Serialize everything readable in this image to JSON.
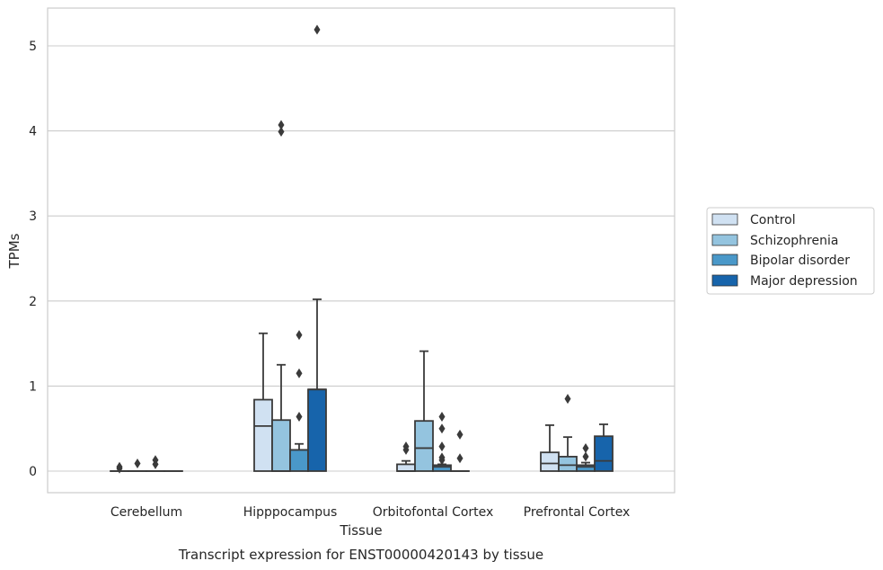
{
  "chart_data": {
    "type": "box",
    "title": "",
    "caption": "Transcript expression for ENST00000420143 by tissue",
    "xlabel": "Tissue",
    "ylabel": "TPMs",
    "ylim": [
      -0.25,
      5.45
    ],
    "yticks": [
      0,
      1,
      2,
      3,
      4,
      5
    ],
    "grid": "horizontal",
    "legend_position": "right",
    "categories": [
      "Cerebellum",
      "Hipppocampus",
      "Orbitofontal Cortex",
      "Prefrontal Cortex"
    ],
    "series": [
      {
        "name": "Control",
        "color": "#d0e1f2",
        "boxes": [
          {
            "whisker_low": 0,
            "q1": 0,
            "median": 0,
            "q3": 0,
            "whisker_high": 0,
            "outliers": [
              0.05,
              0.03
            ]
          },
          {
            "whisker_low": 0,
            "q1": 0,
            "median": 0.53,
            "q3": 0.84,
            "whisker_high": 1.62,
            "outliers": []
          },
          {
            "whisker_low": 0,
            "q1": 0,
            "median": 0,
            "q3": 0.08,
            "whisker_high": 0.12,
            "outliers": [
              0.25,
              0.29
            ]
          },
          {
            "whisker_low": 0,
            "q1": 0,
            "median": 0.09,
            "q3": 0.22,
            "whisker_high": 0.54,
            "outliers": []
          }
        ]
      },
      {
        "name": "Schizophrenia",
        "color": "#94c4df",
        "boxes": [
          {
            "whisker_low": 0,
            "q1": 0,
            "median": 0,
            "q3": 0,
            "whisker_high": 0,
            "outliers": [
              0.09
            ]
          },
          {
            "whisker_low": 0,
            "q1": 0,
            "median": 0,
            "q3": 0.6,
            "whisker_high": 1.25,
            "outliers": [
              4.07,
              3.99
            ]
          },
          {
            "whisker_low": 0,
            "q1": 0,
            "median": 0.27,
            "q3": 0.59,
            "whisker_high": 1.41,
            "outliers": []
          },
          {
            "whisker_low": 0,
            "q1": 0,
            "median": 0.07,
            "q3": 0.17,
            "whisker_high": 0.4,
            "outliers": [
              0.85
            ]
          }
        ]
      },
      {
        "name": "Bipolar disorder",
        "color": "#4a98c9",
        "boxes": [
          {
            "whisker_low": 0,
            "q1": 0,
            "median": 0,
            "q3": 0,
            "whisker_high": 0,
            "outliers": [
              0.13,
              0.08
            ]
          },
          {
            "whisker_low": 0,
            "q1": 0,
            "median": 0.25,
            "q3": 0.25,
            "whisker_high": 0.32,
            "outliers": [
              0.64,
              1.15,
              1.6
            ]
          },
          {
            "whisker_low": 0,
            "q1": 0,
            "median": 0.05,
            "q3": 0.07,
            "whisker_high": 0.08,
            "outliers": [
              0.29,
              0.5,
              0.64,
              0.13,
              0.16
            ]
          },
          {
            "whisker_low": 0,
            "q1": 0,
            "median": 0.05,
            "q3": 0.07,
            "whisker_high": 0.1,
            "outliers": [
              0.17,
              0.27
            ]
          }
        ]
      },
      {
        "name": "Major depression",
        "color": "#1764ab",
        "boxes": [
          {
            "whisker_low": 0,
            "q1": 0,
            "median": 0,
            "q3": 0,
            "whisker_high": 0,
            "outliers": []
          },
          {
            "whisker_low": 0,
            "q1": 0,
            "median": 0.96,
            "q3": 0.96,
            "whisker_high": 2.02,
            "outliers": [
              5.19
            ]
          },
          {
            "whisker_low": 0,
            "q1": 0,
            "median": 0,
            "q3": 0,
            "whisker_high": 0,
            "outliers": [
              0.43,
              0.15
            ]
          },
          {
            "whisker_low": 0,
            "q1": 0,
            "median": 0.12,
            "q3": 0.41,
            "whisker_high": 0.55,
            "outliers": []
          }
        ]
      }
    ]
  }
}
